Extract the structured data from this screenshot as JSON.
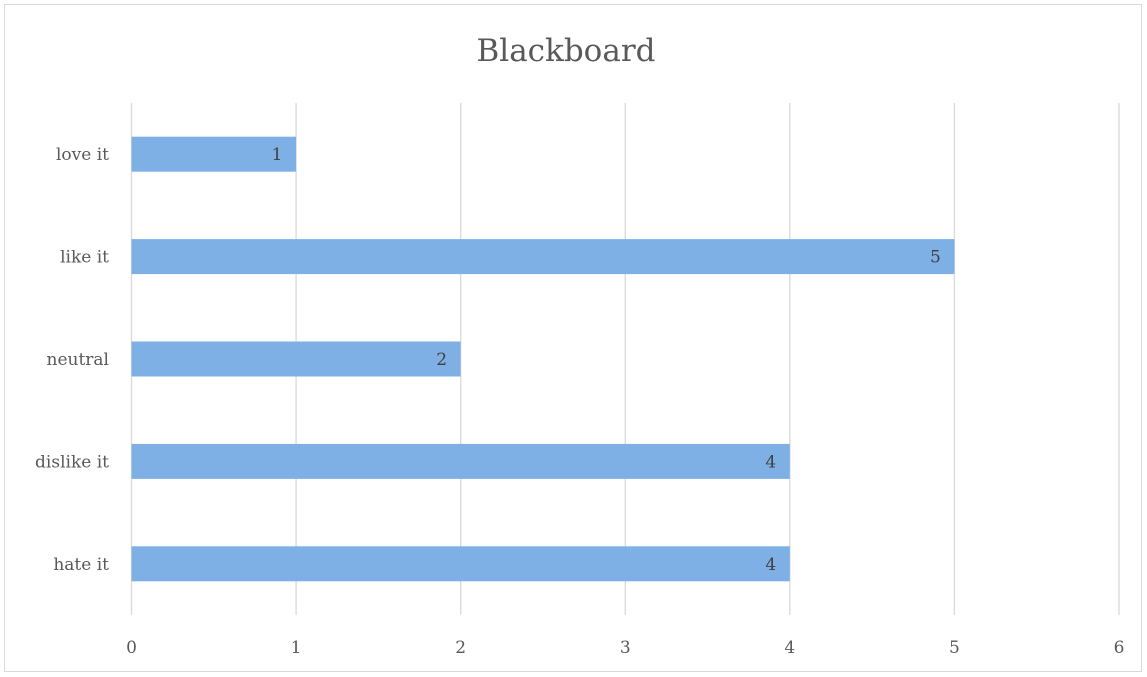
{
  "chart_data": {
    "type": "bar",
    "orientation": "horizontal",
    "title": "Blackboard",
    "categories": [
      "love it",
      "like it",
      "neutral",
      "dislike it",
      "hate it"
    ],
    "values": [
      1,
      5,
      2,
      4,
      4
    ],
    "xlim": [
      0,
      6
    ],
    "xticks": [
      0,
      1,
      2,
      3,
      4,
      5,
      6
    ],
    "grid": true,
    "legend": "none",
    "bar_color": "#7eb0e6"
  }
}
